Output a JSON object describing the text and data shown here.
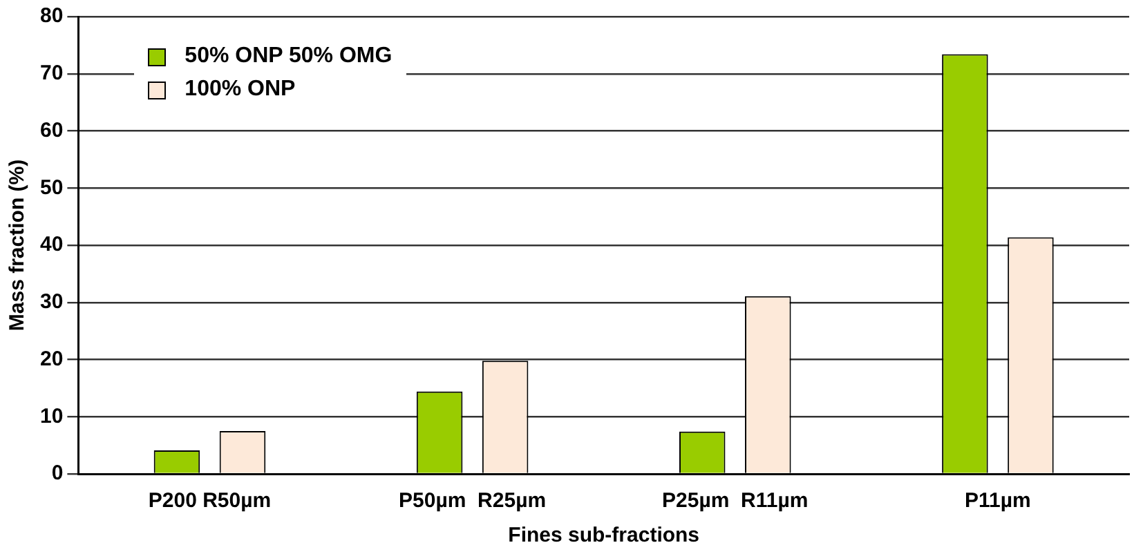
{
  "chart_data": {
    "type": "bar",
    "xlabel": "Fines sub-fractions",
    "ylabel": "Mass fraction (%)",
    "categories": [
      "P200 R50µm",
      "P50µm  R25µm",
      "P25µm  R11µm",
      "P11µm"
    ],
    "series": [
      {
        "name": "50% ONP 50% OMG",
        "color": "#99cc00",
        "values": [
          4.1,
          14.4,
          7.4,
          73.4
        ]
      },
      {
        "name": "100% ONP",
        "color": "#fde9d9",
        "values": [
          7.5,
          19.8,
          31.1,
          41.4
        ]
      }
    ],
    "ylim": [
      0,
      80
    ],
    "yticks": [
      0,
      10,
      20,
      30,
      40,
      50,
      60,
      70,
      80
    ],
    "grid": "y",
    "legend": "top left"
  }
}
